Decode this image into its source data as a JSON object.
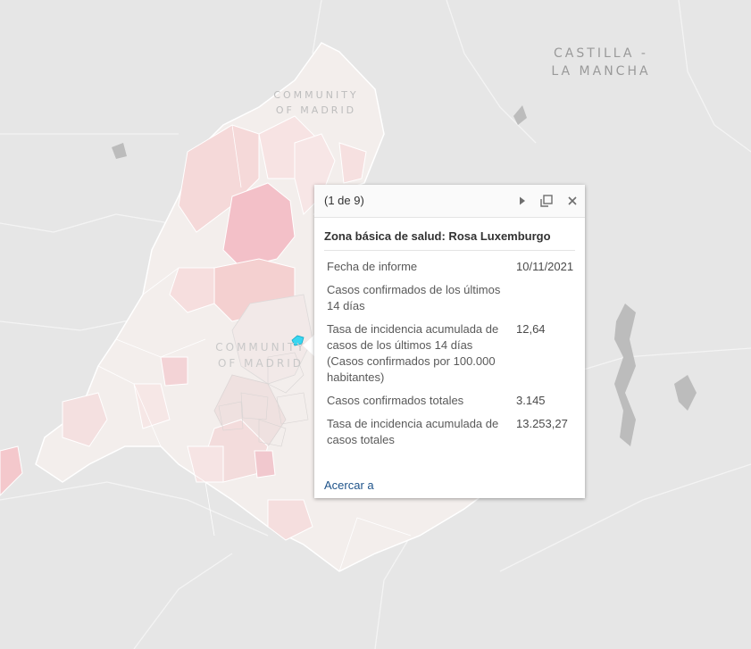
{
  "map": {
    "labels": {
      "castilla_line1": "CASTILLA -",
      "castilla_line2": "LA MANCHA",
      "madrid_top_line1": "COMMUNITY",
      "madrid_top_line2": "OF MADRID",
      "madrid_mid_line1": "COMMUNITY",
      "madrid_mid_line2": "OF MADRID"
    },
    "colors": {
      "background": "#e6e6e6",
      "region": "#f3eeec",
      "choropleth_light": "#f6dede",
      "choropleth_dark": "#f3c0c8",
      "selected": "#39d6f0"
    }
  },
  "popup": {
    "feature_count": "(1 de 9)",
    "title": "Zona básica de salud: Rosa Luxemburgo",
    "attributes": [
      {
        "name": "Fecha de informe",
        "value": "10/11/2021"
      },
      {
        "name": "Casos confirmados de los últimos 14 días",
        "value": ""
      },
      {
        "name": "Tasa de incidencia acumulada de casos de los últimos 14 días (Casos confirmados por 100.000 habitantes)",
        "value": "12,64"
      },
      {
        "name": "Casos confirmados totales",
        "value": "3.145"
      },
      {
        "name": "Tasa de incidencia acumulada de casos totales",
        "value": "13.253,27"
      }
    ],
    "zoom_label": "Acercar a",
    "icons": {
      "next": "play-icon",
      "dock": "dock-icon",
      "close": "close-icon"
    }
  }
}
